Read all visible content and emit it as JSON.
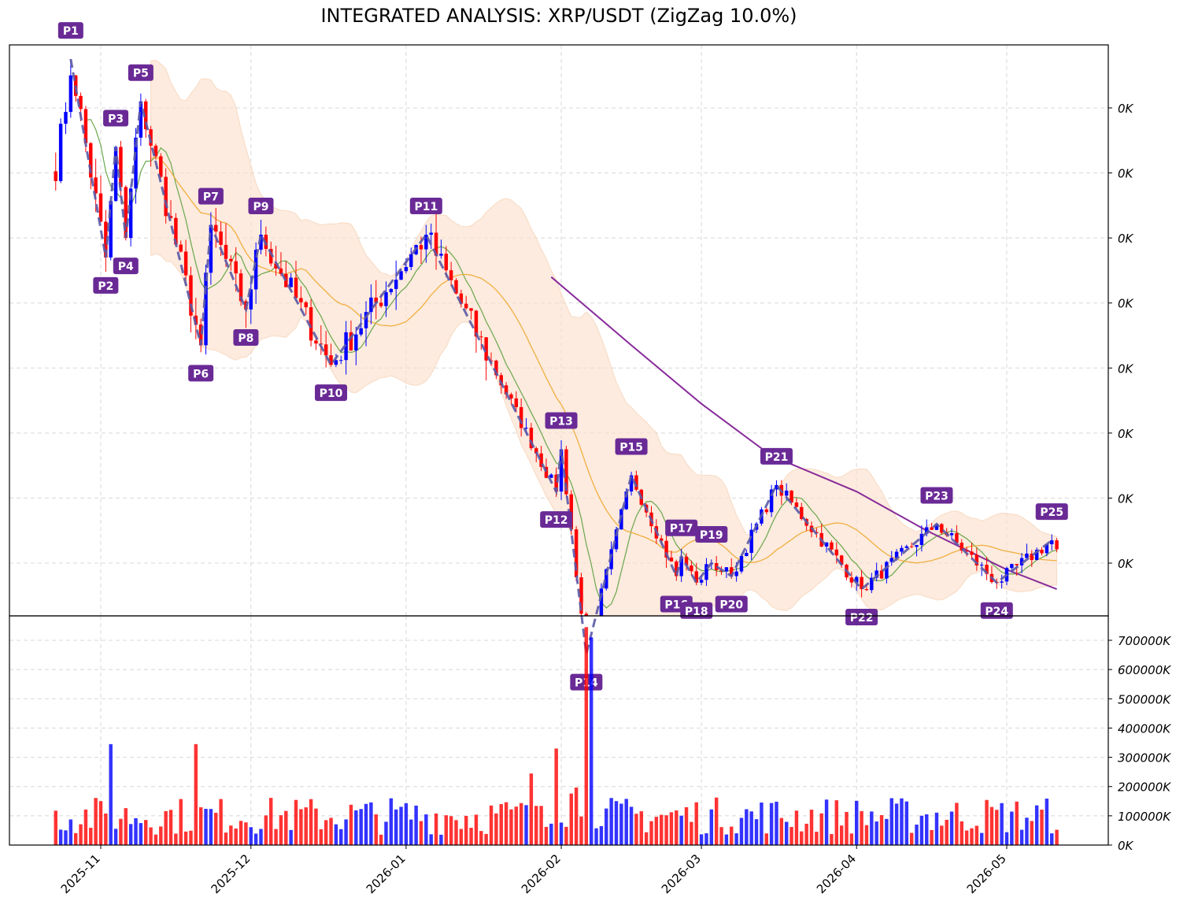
{
  "title": "INTEGRATED ANALYSIS: XRP/USDT (ZigZag 10.0%)",
  "colors": {
    "up": "#0000ff",
    "down": "#ff0000",
    "zigzag": "#5a5aa6",
    "sma_fast": "#5a9e3c",
    "sma_slow": "#f0a830",
    "sma_long": "#882a9a",
    "band_fill": "#fbe0cc",
    "label_bg": "#6a2a96",
    "grid": "#d8d8d8"
  },
  "chart_data": [
    {
      "type": "candlestick",
      "panel": "price",
      "x_labels": [
        "2025-11",
        "2025-12",
        "2026-01",
        "2026-02",
        "2026-03",
        "2026-04",
        "2026-05"
      ],
      "x_label_dates": [
        "2025-11-01",
        "2025-12-01",
        "2026-01-01",
        "2026-02-01",
        "2026-03-01",
        "2026-04-01",
        "2026-05-01"
      ],
      "date_range": [
        "2025-10-23",
        "2026-05-11"
      ],
      "y_tick_labels": [
        "0K",
        "0K",
        "0K",
        "0K",
        "0K",
        "0K",
        "0K",
        "0K"
      ],
      "y_tick_values": [
        2.8,
        2.6,
        2.4,
        2.2,
        2.0,
        1.8,
        1.6,
        1.4
      ],
      "ylim": [
        1.24,
        3.0
      ],
      "grid": true,
      "indicators": [
        "zigzag 10%",
        "short moving average",
        "medium moving average",
        "long moving average",
        "volatility band"
      ],
      "zigzag_pivots": [
        {
          "label": "P1",
          "date": "2025-10-26",
          "price": 2.95,
          "kind": "high"
        },
        {
          "label": "P2",
          "date": "2025-11-02",
          "price": 2.34,
          "kind": "low"
        },
        {
          "label": "P3",
          "date": "2025-11-04",
          "price": 2.68,
          "kind": "high"
        },
        {
          "label": "P4",
          "date": "2025-11-06",
          "price": 2.4,
          "kind": "low"
        },
        {
          "label": "P5",
          "date": "2025-11-09",
          "price": 2.82,
          "kind": "high"
        },
        {
          "label": "P6",
          "date": "2025-11-21",
          "price": 2.07,
          "kind": "low"
        },
        {
          "label": "P7",
          "date": "2025-11-23",
          "price": 2.44,
          "kind": "high"
        },
        {
          "label": "P8",
          "date": "2025-11-30",
          "price": 2.18,
          "kind": "low"
        },
        {
          "label": "P9",
          "date": "2025-12-03",
          "price": 2.41,
          "kind": "high"
        },
        {
          "label": "P10",
          "date": "2025-12-17",
          "price": 2.01,
          "kind": "low"
        },
        {
          "label": "P11",
          "date": "2026-01-05",
          "price": 2.41,
          "kind": "high"
        },
        {
          "label": "P12",
          "date": "2026-01-31",
          "price": 1.62,
          "kind": "low"
        },
        {
          "label": "P13",
          "date": "2026-02-01",
          "price": 1.75,
          "kind": "high"
        },
        {
          "label": "P14",
          "date": "2026-02-06",
          "price": 1.12,
          "kind": "low"
        },
        {
          "label": "P15",
          "date": "2026-02-15",
          "price": 1.67,
          "kind": "high"
        },
        {
          "label": "P16",
          "date": "2026-02-24",
          "price": 1.36,
          "kind": "low"
        },
        {
          "label": "P17",
          "date": "2026-02-25",
          "price": 1.42,
          "kind": "high"
        },
        {
          "label": "P18",
          "date": "2026-02-28",
          "price": 1.34,
          "kind": "low"
        },
        {
          "label": "P19",
          "date": "2026-03-03",
          "price": 1.4,
          "kind": "high"
        },
        {
          "label": "P20",
          "date": "2026-03-07",
          "price": 1.36,
          "kind": "low"
        },
        {
          "label": "P21",
          "date": "2026-03-16",
          "price": 1.64,
          "kind": "high"
        },
        {
          "label": "P22",
          "date": "2026-04-02",
          "price": 1.32,
          "kind": "low"
        },
        {
          "label": "P23",
          "date": "2026-04-17",
          "price": 1.52,
          "kind": "high"
        },
        {
          "label": "P24",
          "date": "2026-04-29",
          "price": 1.34,
          "kind": "low"
        },
        {
          "label": "P25",
          "date": "2026-05-10",
          "price": 1.47,
          "kind": "high"
        }
      ],
      "long_ma_points": [
        {
          "date": "2026-01-30",
          "price": 2.28
        },
        {
          "date": "2026-02-15",
          "price": 2.07
        },
        {
          "date": "2026-03-01",
          "price": 1.89
        },
        {
          "date": "2026-03-15",
          "price": 1.73
        },
        {
          "date": "2026-04-01",
          "price": 1.62
        },
        {
          "date": "2026-04-15",
          "price": 1.5
        },
        {
          "date": "2026-05-01",
          "price": 1.38
        },
        {
          "date": "2026-05-11",
          "price": 1.32
        }
      ]
    },
    {
      "type": "bar",
      "panel": "volume",
      "y_tick_labels": [
        "0K",
        "100000K",
        "200000K",
        "300000K",
        "400000K",
        "500000K",
        "600000K",
        "700000K"
      ],
      "y_tick_values": [
        0,
        100000,
        200000,
        300000,
        400000,
        500000,
        600000,
        700000
      ],
      "ylim": [
        0,
        765000
      ],
      "unit": "K",
      "notable_values": [
        {
          "date": "2026-02-06",
          "value": 745000
        },
        {
          "date": "2026-02-07",
          "value": 710000
        },
        {
          "date": "2026-01-31",
          "value": 330000
        },
        {
          "date": "2025-11-20",
          "value": 345000
        },
        {
          "date": "2025-11-03",
          "value": 345000
        }
      ]
    }
  ]
}
